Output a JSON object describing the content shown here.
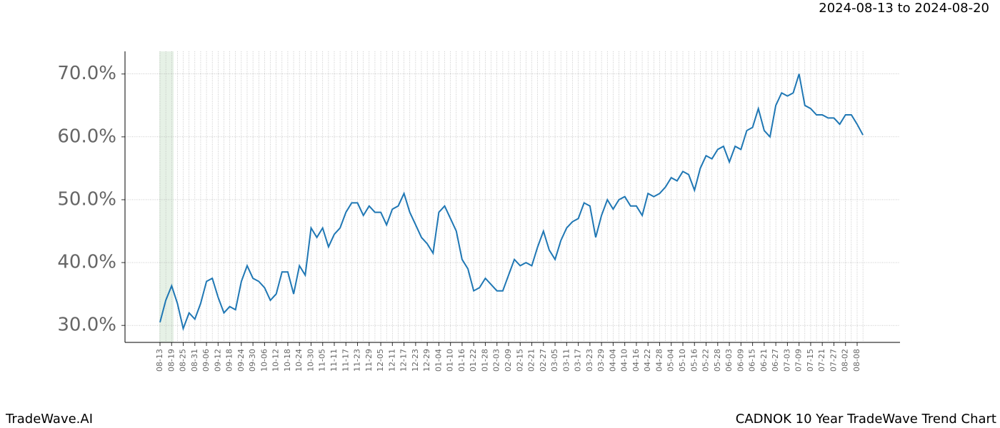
{
  "chart_data": {
    "type": "line",
    "title": "CADNOK 10 Year TradeWave Trend Chart",
    "subtitle": "2024-08-13 to 2024-08-20",
    "brand": "TradeWave.AI",
    "categories": [
      "08-13",
      null,
      "08-19",
      null,
      "08-25",
      null,
      "08-31",
      null,
      "09-06",
      null,
      "09-12",
      null,
      "09-18",
      null,
      "09-24",
      null,
      "09-30",
      null,
      "10-06",
      null,
      "10-12",
      null,
      "10-18",
      null,
      "10-24",
      null,
      "10-30",
      null,
      "11-05",
      null,
      "11-11",
      null,
      "11-17",
      null,
      "11-23",
      null,
      "11-29",
      null,
      "12-05",
      null,
      "12-11",
      null,
      "12-17",
      null,
      "12-23",
      null,
      "12-29",
      null,
      "01-04",
      null,
      "01-10",
      null,
      "01-16",
      null,
      "01-22",
      null,
      "01-28",
      null,
      "02-03",
      null,
      "02-09",
      null,
      "02-15",
      null,
      "02-21",
      null,
      "02-27",
      null,
      "03-05",
      null,
      "03-11",
      null,
      "03-17",
      null,
      "03-23",
      null,
      "03-29",
      null,
      "04-04",
      null,
      "04-10",
      null,
      "04-16",
      null,
      "04-22",
      null,
      "04-28",
      null,
      "05-04",
      null,
      "05-10",
      null,
      "05-16",
      null,
      "05-22",
      null,
      "05-28",
      null,
      "06-03",
      null,
      "06-09",
      null,
      "06-15",
      null,
      "06-21",
      null,
      "06-27",
      null,
      "07-03",
      null,
      "07-09",
      null,
      "07-15",
      null,
      "07-21",
      null,
      "07-27",
      null,
      "08-02",
      null,
      "08-08",
      null
    ],
    "series": [
      {
        "name": "CADNOK",
        "color": "#1f77b4",
        "values": [
          30.5,
          34,
          36.3,
          33.5,
          29.5,
          32,
          31,
          33.5,
          37,
          37.5,
          34.5,
          32,
          33,
          32.5,
          37,
          39.5,
          37.5,
          37,
          36,
          34,
          35,
          38.5,
          38.5,
          35,
          39.5,
          38,
          45.5,
          44,
          45.5,
          42.5,
          44.5,
          45.5,
          48,
          49.5,
          49.5,
          47.5,
          49,
          48,
          48,
          46,
          48.5,
          49,
          51,
          48,
          46,
          44,
          43,
          41.5,
          48,
          49,
          47,
          45,
          40.5,
          39,
          35.5,
          36,
          37.5,
          36.5,
          35.5,
          35.5,
          38,
          40.5,
          39.5,
          40,
          39.5,
          42.5,
          45,
          42,
          40.5,
          43.5,
          45.5,
          46.5,
          47,
          49.5,
          49,
          44,
          47.5,
          50,
          48.5,
          50,
          50.5,
          49,
          49,
          47.5,
          51,
          50.5,
          51,
          52,
          53.5,
          53,
          54.5,
          54,
          51.5,
          55,
          57,
          56.5,
          58,
          58.5,
          56,
          58.5,
          58,
          61,
          61.5,
          64.5,
          61,
          60,
          65,
          67,
          66.5,
          67,
          70,
          65,
          64.5,
          63.5,
          63.5,
          63,
          63,
          62,
          63.5,
          63.5,
          62,
          60.3
        ]
      }
    ],
    "ylim": [
      27.3,
      73.6
    ],
    "yticks": [
      {
        "value": 30,
        "label": "30.0%"
      },
      {
        "value": 40,
        "label": "40.0%"
      },
      {
        "value": 50,
        "label": "50.0%"
      },
      {
        "value": 60,
        "label": "60.0%"
      },
      {
        "value": 70,
        "label": "70.0%"
      }
    ],
    "grid": true
  }
}
